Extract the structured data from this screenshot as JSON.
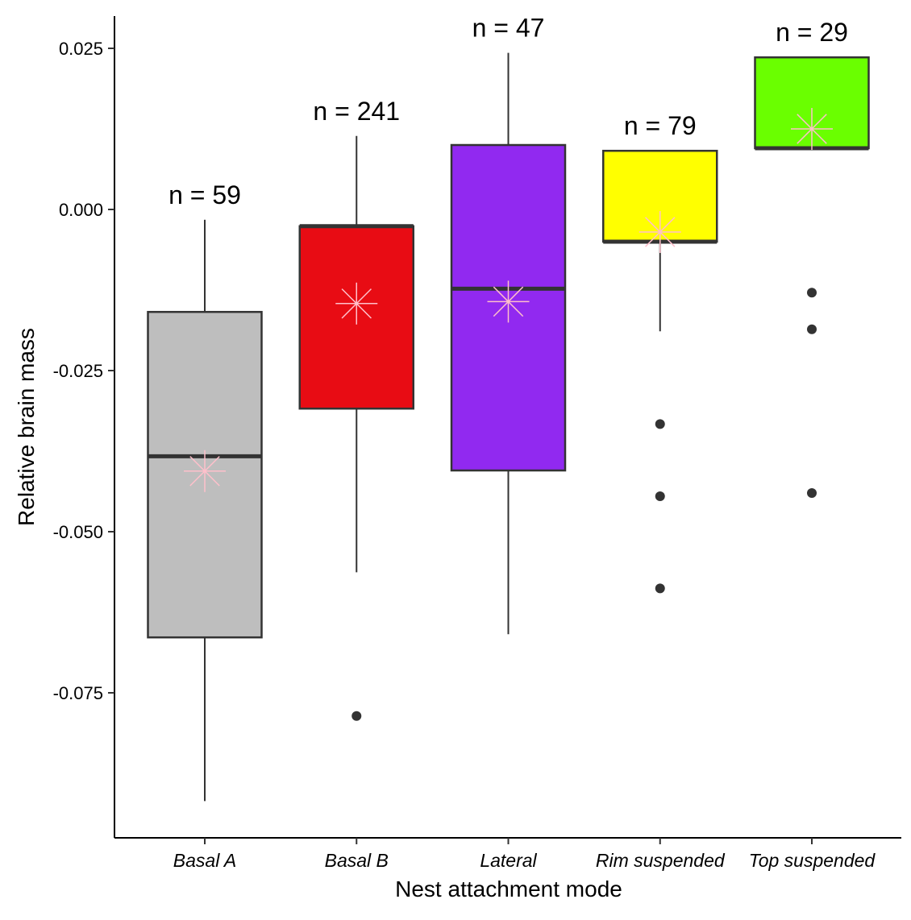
{
  "chart_data": {
    "type": "box",
    "title": "",
    "xlabel": "Nest attachment mode",
    "ylabel": "Relative brain mass",
    "ylim": [
      -0.0975,
      0.03
    ],
    "yticks": [
      0.025,
      0.0,
      -0.025,
      -0.05,
      -0.075
    ],
    "ytick_labels": [
      "0.025",
      "0.000",
      "-0.025",
      "-0.050",
      "-0.075"
    ],
    "grid": false,
    "mean_marker_color": "#ffc0cb",
    "groups": [
      {
        "name": "Basal A",
        "n_label": "n = 59",
        "color": "#bebebe",
        "whisker_low": -0.0918,
        "q1": -0.0664,
        "median": -0.0383,
        "q3": -0.0159,
        "whisker_high": -0.0016,
        "mean": -0.0406,
        "outliers": []
      },
      {
        "name": "Basal B",
        "n_label": "n = 241",
        "color": "#e80c14",
        "whisker_low": -0.0563,
        "q1": -0.0309,
        "median": -0.0026,
        "q3": -0.0026,
        "whisker_high": 0.0114,
        "mean": -0.0146,
        "outliers": [
          -0.0786
        ]
      },
      {
        "name": "Lateral",
        "n_label": "n = 47",
        "color": "#9129f0",
        "whisker_low": -0.0659,
        "q1": -0.0405,
        "median": -0.0123,
        "q3": 0.01,
        "whisker_high": 0.0243,
        "mean": -0.0143,
        "outliers": []
      },
      {
        "name": "Rim suspended",
        "n_label": "n = 79",
        "color": "#ffff00",
        "whisker_low": -0.0189,
        "q1": -0.005,
        "median": -0.005,
        "q3": 0.0091,
        "whisker_high": 0.0091,
        "mean": -0.0035,
        "outliers": [
          -0.0333,
          -0.0445,
          -0.0588
        ]
      },
      {
        "name": "Top suspended",
        "n_label": "n = 29",
        "color": "#6aff00",
        "whisker_low": 0.0095,
        "q1": 0.0095,
        "median": 0.0095,
        "q3": 0.0236,
        "whisker_high": 0.0236,
        "mean": 0.0125,
        "outliers": [
          -0.0129,
          -0.0186,
          -0.044
        ]
      }
    ]
  }
}
